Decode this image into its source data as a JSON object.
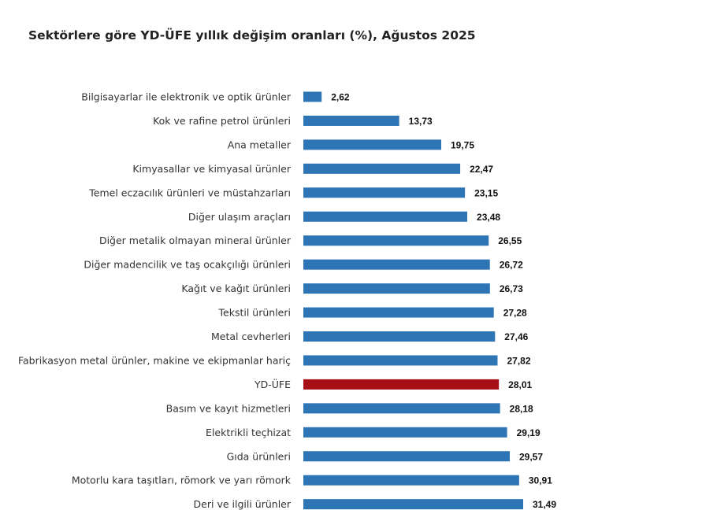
{
  "chart_data": {
    "type": "bar",
    "orientation": "horizontal",
    "title": "Sektörlere göre YD-ÜFE yıllık değişim oranları (%), Ağustos 2025",
    "xlabel": "",
    "ylabel": "",
    "xlim": [
      0,
      35
    ],
    "grid": false,
    "legend": "none",
    "categories": [
      "Bilgisayarlar ile elektronik ve optik ürünler",
      "Kok ve rafine petrol ürünleri",
      "Ana metaller",
      "Kimyasallar ve kimyasal ürünler",
      "Temel eczacılık ürünleri ve müstahzarları",
      "Diğer ulaşım araçları",
      "Diğer metalik olmayan mineral ürünler",
      "Diğer madencilik ve taş ocakçılığı ürünleri",
      "Kağıt ve kağıt ürünleri",
      "Tekstil ürünleri",
      "Metal cevherleri",
      "Fabrikasyon metal ürünler, makine ve ekipmanlar hariç",
      "YD-ÜFE",
      "Basım ve kayıt hizmetleri",
      "Elektrikli teçhizat",
      "Gıda ürünleri",
      "Motorlu kara taşıtları, römork ve yarı römork",
      "Deri ve ilgili ürünler"
    ],
    "values": [
      2.62,
      13.73,
      19.75,
      22.47,
      23.15,
      23.48,
      26.55,
      26.72,
      26.73,
      27.28,
      27.46,
      27.82,
      28.01,
      28.18,
      29.19,
      29.57,
      30.91,
      31.49
    ],
    "value_labels": [
      "2,62",
      "13,73",
      "19,75",
      "22,47",
      "23,15",
      "23,48",
      "26,55",
      "26,72",
      "26,73",
      "27,28",
      "27,46",
      "27,82",
      "28,01",
      "28,18",
      "29,19",
      "29,57",
      "30,91",
      "31,49"
    ],
    "highlight_category": "YD-ÜFE",
    "colors": {
      "default": "#2e75b6",
      "highlight": "#a50f15"
    }
  }
}
